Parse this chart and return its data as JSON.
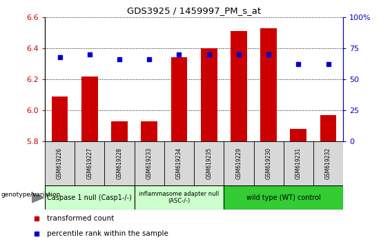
{
  "title": "GDS3925 / 1459997_PM_s_at",
  "samples": [
    "GSM619226",
    "GSM619227",
    "GSM619228",
    "GSM619233",
    "GSM619234",
    "GSM619235",
    "GSM619229",
    "GSM619230",
    "GSM619231",
    "GSM619232"
  ],
  "red_values": [
    6.09,
    6.22,
    5.93,
    5.93,
    6.34,
    6.4,
    6.51,
    6.53,
    5.88,
    5.97
  ],
  "blue_values": [
    68,
    70,
    66,
    66,
    70,
    70,
    70,
    70,
    62,
    62
  ],
  "ylim_left": [
    5.8,
    6.6
  ],
  "ylim_right": [
    0,
    100
  ],
  "yticks_left": [
    5.8,
    6.0,
    6.2,
    6.4,
    6.6
  ],
  "yticks_right": [
    0,
    25,
    50,
    75,
    100
  ],
  "bar_color": "#cc0000",
  "dot_color": "#0000cc",
  "bar_bottom": 5.8,
  "group_info": [
    {
      "indices": [
        0,
        1,
        2
      ],
      "label": "Caspase 1 null (Casp1-/-)",
      "color": "#ccffcc"
    },
    {
      "indices": [
        3,
        4,
        5
      ],
      "label": "inflammasome adapter null\n(ASC-/-)",
      "color": "#ccffcc"
    },
    {
      "indices": [
        6,
        7,
        8,
        9
      ],
      "label": "wild type (WT) control",
      "color": "#33cc33"
    }
  ],
  "xlabel": "genotype/variation",
  "legend_items": [
    "transformed count",
    "percentile rank within the sample"
  ],
  "legend_colors": [
    "#cc0000",
    "#0000cc"
  ]
}
